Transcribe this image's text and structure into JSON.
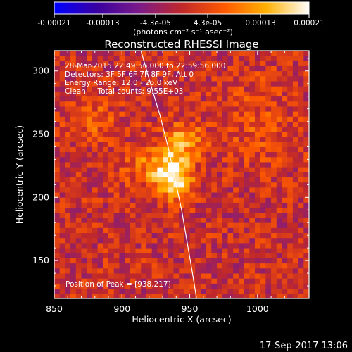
{
  "chart_data": {
    "type": "heatmap",
    "title": "Reconstructed RHESSI Image",
    "xlabel": "Heliocentric X (arcsec)",
    "ylabel": "Heliocentric Y (arcsec)",
    "xlim": [
      850,
      1038
    ],
    "ylim": [
      120,
      316
    ],
    "xticks": [
      850,
      900,
      950,
      1000
    ],
    "yticks": [
      150,
      200,
      250,
      300
    ],
    "colorbar": {
      "range": [
        -0.00021,
        0.00021
      ],
      "tick_values": [
        -0.00021,
        -0.00013,
        -4.3e-05,
        4.3e-05,
        0.00013,
        0.00021
      ],
      "tick_labels": [
        "-0.00021",
        "-0.00013",
        "-4.3e-05",
        "4.3e-05",
        "0.00013",
        "0.00021"
      ],
      "unit_label": "(photons cm⁻² s⁻¹ asec⁻²)"
    },
    "annotations": [
      "28-Mar-2015 22:49:56.000 to 22:59:56.000",
      "Detectors: 3F 5F 6F 7F 8F 9F, Att 0",
      "Energy Range: 12.0 - 25.0 keV",
      "Clean     Total counts: 9.55E+03"
    ],
    "peak": {
      "label": "Position of Peak = [938,217]",
      "x": 938,
      "y": 217
    },
    "limb_curve": {
      "x": [
        914,
        921,
        928,
        934,
        939,
        944,
        948,
        952,
        955
      ],
      "y": [
        316,
        290,
        265,
        240,
        215,
        190,
        165,
        140,
        120
      ]
    },
    "sources": [
      {
        "x": 938,
        "y": 217,
        "sigma_x": 9,
        "sigma_y": 12,
        "amplitude": 0.00021
      },
      {
        "x": 945,
        "y": 245,
        "sigma_x": 10,
        "sigma_y": 10,
        "amplitude": 0.00012
      },
      {
        "x": 918,
        "y": 225,
        "sigma_x": 14,
        "sigma_y": 12,
        "amplitude": 8e-05
      },
      {
        "x": 880,
        "y": 260,
        "sigma_x": 12,
        "sigma_y": 12,
        "amplitude": 6e-05
      },
      {
        "x": 1000,
        "y": 260,
        "sigma_x": 20,
        "sigma_y": 25,
        "amplitude": 4e-05
      }
    ],
    "colors": {
      "colormap": [
        "#0000ff",
        "#3a00a0",
        "#7a1a8a",
        "#c0282a",
        "#ff5a00",
        "#ffb000",
        "#ffffff"
      ],
      "axes": "#ffffff",
      "background": "#000000"
    }
  },
  "footer_timestamp": "17-Sep-2017 13:06"
}
